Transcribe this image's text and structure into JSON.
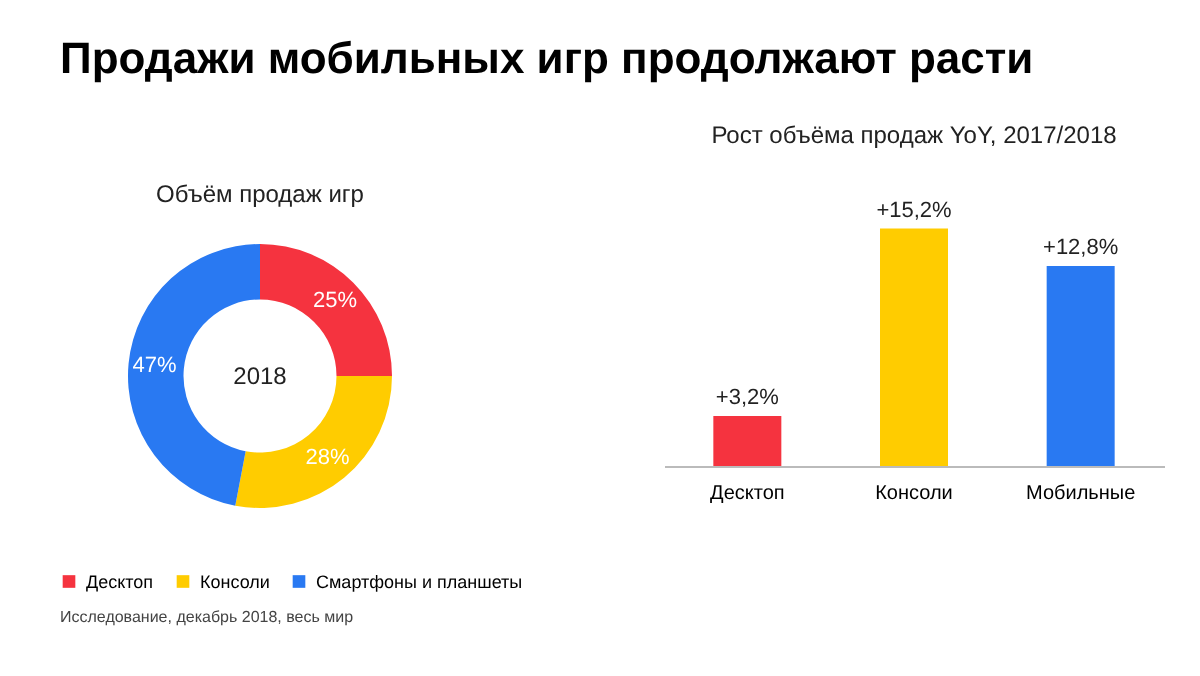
{
  "chart_data": [
    {
      "type": "donut",
      "title": "Продажи мобильных игр продолжают расти",
      "subtitle": "Объём продаж игр",
      "categories": [
        "Десктоп",
        "Консоли",
        "Смартфоны и планшеты"
      ],
      "values": [
        25,
        28,
        47
      ],
      "colors": [
        "#f5333f",
        "#ffcc00",
        "#2979f2"
      ],
      "value_labels": [
        "25%",
        "28%",
        "47%"
      ],
      "legend": "bottom",
      "annotations": [
        "2018",
        "Исследование, декабрь 2018, весь мир"
      ]
    },
    {
      "type": "bar",
      "title": "Рост объёма продаж YoY, 2017/2018",
      "categories": [
        "Десктоп",
        "Консоли",
        "Мобильные"
      ],
      "values": [
        3.2,
        15.2,
        12.8
      ],
      "colors": [
        "#f5333f",
        "#ffcc00",
        "#2979f2"
      ],
      "value_labels": [
        "+3,2%",
        "+15,2%",
        "+12,8%"
      ],
      "tick_labels": "x"
    }
  ]
}
